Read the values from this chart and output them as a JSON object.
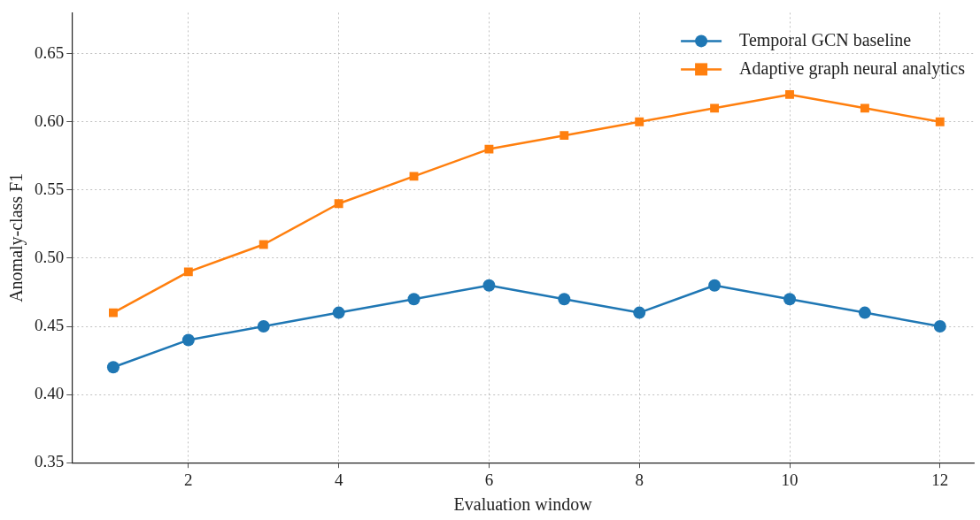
{
  "chart_data": {
    "type": "line",
    "xlabel": "Evaluation window",
    "ylabel": "Anomaly-class F1",
    "x": [
      1,
      2,
      3,
      4,
      5,
      6,
      7,
      8,
      9,
      10,
      11,
      12
    ],
    "series": [
      {
        "name": "Temporal GCN baseline",
        "color": "#1f77b4",
        "marker": "circle",
        "values": [
          0.42,
          0.44,
          0.45,
          0.46,
          0.47,
          0.48,
          0.47,
          0.46,
          0.48,
          0.47,
          0.46,
          0.45
        ]
      },
      {
        "name": "Adaptive graph neural analytics",
        "color": "#ff7f0e",
        "marker": "square",
        "values": [
          0.46,
          0.49,
          0.51,
          0.54,
          0.56,
          0.58,
          0.59,
          0.6,
          0.61,
          0.62,
          0.61,
          0.6
        ]
      }
    ],
    "xlim": [
      0.45,
      12.45
    ],
    "xticks": [
      2,
      4,
      6,
      8,
      10,
      12
    ],
    "ylim": [
      0.35,
      0.68
    ],
    "yticks": [
      {
        "value": 0.35,
        "label": "0.35"
      },
      {
        "value": 0.4,
        "label": "0.40"
      },
      {
        "value": 0.45,
        "label": "0.45"
      },
      {
        "value": 0.5,
        "label": "0.50"
      },
      {
        "value": 0.55,
        "label": "0.55"
      },
      {
        "value": 0.6,
        "label": "0.60"
      },
      {
        "value": 0.65,
        "label": "0.65"
      }
    ],
    "grid": true,
    "legend": "top right",
    "line_style": "solid"
  }
}
